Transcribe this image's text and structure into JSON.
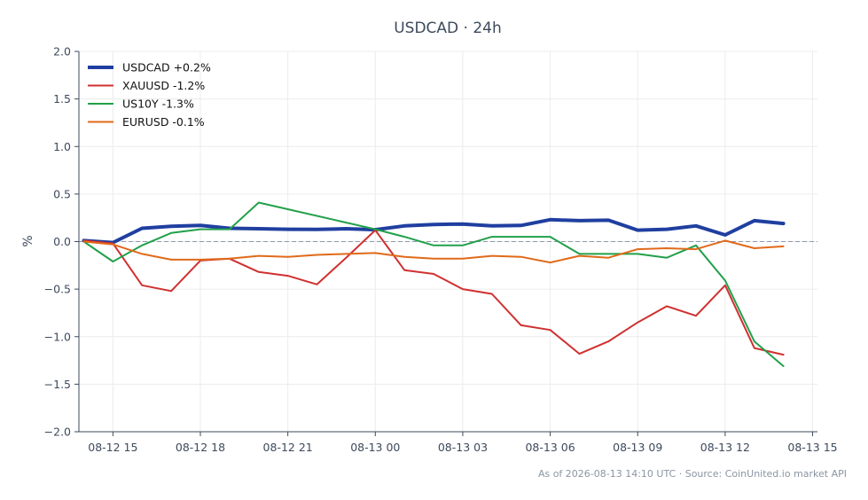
{
  "chart_data": {
    "type": "line",
    "title": "USDCAD · 24h",
    "xlabel": "",
    "ylabel": "%",
    "ylim": [
      -2.0,
      2.0
    ],
    "yticks": [
      -2.0,
      -1.5,
      -1.0,
      -0.5,
      0.0,
      0.5,
      1.0,
      1.5,
      2.0
    ],
    "ytick_labels": [
      "−2.0",
      "−1.5",
      "−1.0",
      "−0.5",
      "0.0",
      "0.5",
      "1.0",
      "1.5",
      "2.0"
    ],
    "xlim": [
      "2026-08-12 13:50",
      "2026-08-13 15:10"
    ],
    "xticks": [
      "2026-08-12 15:00",
      "2026-08-12 18:00",
      "2026-08-12 21:00",
      "2026-08-13 00:00",
      "2026-08-13 03:00",
      "2026-08-13 06:00",
      "2026-08-13 09:00",
      "2026-08-13 12:00",
      "2026-08-13 15:00"
    ],
    "xtick_labels": [
      "08-12 15",
      "08-12 18",
      "08-12 21",
      "08-13 00",
      "08-13 03",
      "08-13 06",
      "08-13 09",
      "08-13 12",
      "08-13 15"
    ],
    "grid": true,
    "legend_position": "top-left",
    "reference_line": 0.0,
    "x": [
      "2026-08-12 14:00",
      "2026-08-12 15:00",
      "2026-08-12 16:00",
      "2026-08-12 17:00",
      "2026-08-12 18:00",
      "2026-08-12 19:00",
      "2026-08-12 20:00",
      "2026-08-12 21:00",
      "2026-08-12 22:00",
      "2026-08-12 23:00",
      "2026-08-13 00:00",
      "2026-08-13 01:00",
      "2026-08-13 02:00",
      "2026-08-13 03:00",
      "2026-08-13 04:00",
      "2026-08-13 05:00",
      "2026-08-13 06:00",
      "2026-08-13 07:00",
      "2026-08-13 08:00",
      "2026-08-13 09:00",
      "2026-08-13 10:00",
      "2026-08-13 11:00",
      "2026-08-13 12:00",
      "2026-08-13 13:00",
      "2026-08-13 14:00"
    ],
    "series": [
      {
        "name": "USDCAD +0.2%",
        "color": "#1f3fa0",
        "width": 4,
        "values": [
          0.01,
          -0.01,
          0.14,
          0.16,
          0.17,
          0.14,
          0.135,
          0.13,
          0.128,
          0.135,
          0.125,
          0.165,
          0.18,
          0.185,
          0.165,
          0.17,
          0.23,
          0.22,
          0.225,
          0.12,
          0.13,
          0.165,
          0.07,
          0.22,
          0.19
        ]
      },
      {
        "name": "XAUUSD -1.2%",
        "color": "#d03030",
        "width": 2,
        "values": [
          0.01,
          -0.02,
          -0.46,
          -0.52,
          -0.2,
          -0.18,
          -0.32,
          -0.36,
          -0.45,
          -0.17,
          0.12,
          -0.3,
          -0.34,
          -0.5,
          -0.55,
          -0.88,
          -0.93,
          -1.18,
          -1.05,
          -0.85,
          -0.68,
          -0.78,
          -0.46,
          -1.12,
          -1.19
        ]
      },
      {
        "name": "US10Y -1.3%",
        "color": "#22a04a",
        "width": 2,
        "x": [
          "2026-08-12 14:00",
          "2026-08-12 15:00",
          "2026-08-12 16:00",
          "2026-08-12 17:00",
          "2026-08-12 18:00",
          "2026-08-12 19:00",
          "2026-08-12 20:00",
          "2026-08-13 00:00",
          "2026-08-13 01:00",
          "2026-08-13 02:00",
          "2026-08-13 03:00",
          "2026-08-13 04:00",
          "2026-08-13 05:00",
          "2026-08-13 06:00",
          "2026-08-13 07:00",
          "2026-08-13 08:00",
          "2026-08-13 09:00",
          "2026-08-13 10:00",
          "2026-08-13 11:00",
          "2026-08-13 12:00",
          "2026-08-13 13:00",
          "2026-08-13 14:00"
        ],
        "values": [
          0.0,
          -0.21,
          -0.04,
          0.09,
          0.13,
          0.13,
          0.41,
          0.13,
          0.05,
          -0.04,
          -0.04,
          0.05,
          0.05,
          0.05,
          -0.13,
          -0.13,
          -0.13,
          -0.17,
          -0.04,
          -0.41,
          -1.05,
          -1.31
        ]
      },
      {
        "name": "EURUSD -0.1%",
        "color": "#e06a1a",
        "width": 2,
        "values": [
          0.0,
          -0.03,
          -0.13,
          -0.19,
          -0.19,
          -0.18,
          -0.15,
          -0.16,
          -0.14,
          -0.13,
          -0.12,
          -0.16,
          -0.18,
          -0.18,
          -0.15,
          -0.16,
          -0.22,
          -0.15,
          -0.17,
          -0.08,
          -0.07,
          -0.08,
          0.01,
          -0.07,
          -0.05
        ]
      }
    ]
  },
  "footer": "As of 2026-08-13 14:10 UTC · Source: CoinUnited.io market API"
}
